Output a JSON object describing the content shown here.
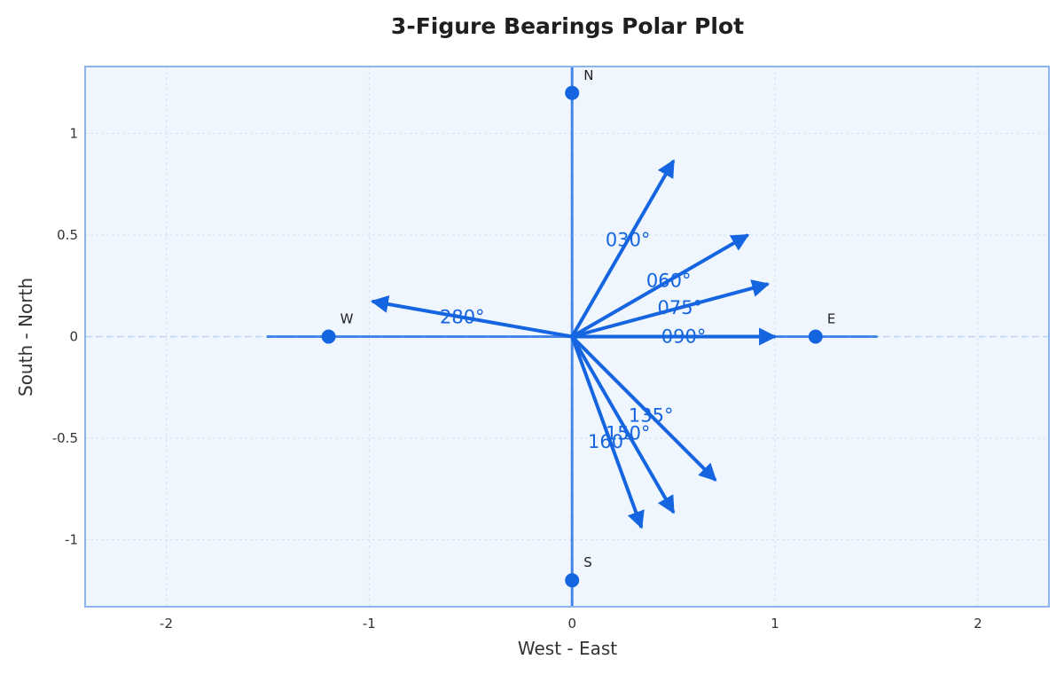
{
  "colors": {
    "accent": "#1565e0",
    "plot_background": "#f0f6fd",
    "frame": "#8db4ec",
    "grid": "#d5e2f3",
    "reference_axis": "#bcd3f5"
  },
  "chart_data": {
    "type": "scatter",
    "title": "3-Figure Bearings Polar Plot",
    "xlabel": "West - East",
    "ylabel": "South - North",
    "xlim": [
      -2.4,
      2.35
    ],
    "ylim": [
      -1.33,
      1.33
    ],
    "x_ticks": [
      {
        "value": -2,
        "label": "-2"
      },
      {
        "value": -1,
        "label": "-1"
      },
      {
        "value": 0,
        "label": "0"
      },
      {
        "value": 1,
        "label": "1"
      },
      {
        "value": 2,
        "label": "2"
      }
    ],
    "y_ticks": [
      {
        "value": -1,
        "label": "-1"
      },
      {
        "value": -0.5,
        "label": "-0.5"
      },
      {
        "value": 0,
        "label": "0"
      },
      {
        "value": 0.5,
        "label": "0.5"
      },
      {
        "value": 1,
        "label": "1"
      }
    ],
    "grid": true,
    "compass_axes_extent": 1.5,
    "compass_points": [
      {
        "label": "N",
        "x": 0,
        "y": 1.2
      },
      {
        "label": "E",
        "x": 1.2,
        "y": 0
      },
      {
        "label": "S",
        "x": 0,
        "y": -1.2
      },
      {
        "label": "W",
        "x": -1.2,
        "y": 0
      }
    ],
    "bearing_vectors": [
      {
        "label": "030°",
        "bearing": 30,
        "length": 1.0
      },
      {
        "label": "060°",
        "bearing": 60,
        "length": 1.0
      },
      {
        "label": "075°",
        "bearing": 75,
        "length": 1.0
      },
      {
        "label": "090°",
        "bearing": 90,
        "length": 1.0
      },
      {
        "label": "135°",
        "bearing": 135,
        "length": 1.0
      },
      {
        "label": "150°",
        "bearing": 150,
        "length": 1.0
      },
      {
        "label": "160°",
        "bearing": 160,
        "length": 1.0
      },
      {
        "label": "280°",
        "bearing": 280,
        "length": 1.0
      }
    ]
  }
}
